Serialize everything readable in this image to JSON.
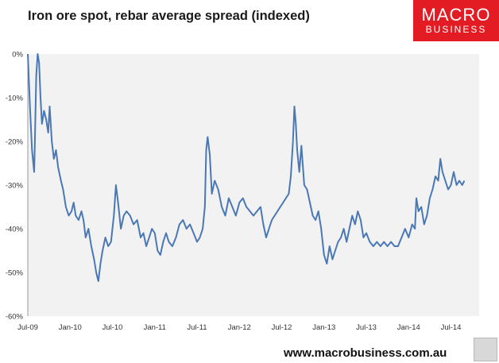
{
  "title": "Iron ore spot, rebar average spread (indexed)",
  "logo": {
    "line1": "MACRO",
    "line2": "BUSINESS"
  },
  "footer": "www.macrobusiness.com.au",
  "colors": {
    "line": "#4a78b5",
    "plot_bg": "#f2f2f2",
    "grid": "#ffffff",
    "brand": "#e31b23"
  },
  "chart_data": {
    "type": "line",
    "title": "Iron ore spot, rebar average spread (indexed)",
    "xlabel": "",
    "ylabel": "",
    "ylim": [
      -60,
      0
    ],
    "xlim": [
      0,
      64
    ],
    "y_ticks": [
      0,
      -10,
      -20,
      -30,
      -40,
      -50,
      -60
    ],
    "y_tick_labels": [
      "0%",
      "-10%",
      "-20%",
      "-30%",
      "-40%",
      "-50%",
      "-60%"
    ],
    "x_ticks": [
      0,
      6,
      12,
      18,
      24,
      30,
      36,
      42,
      48,
      54,
      60
    ],
    "x_tick_labels": [
      "Jul-09",
      "Jan-10",
      "Jul-10",
      "Jan-11",
      "Jul-11",
      "Jan-12",
      "Jul-12",
      "Jan-13",
      "Jul-13",
      "Jan-14",
      "Jul-14"
    ],
    "grid": false,
    "legend": "none",
    "series": [
      {
        "points": [
          [
            0,
            0
          ],
          [
            0.3,
            -12
          ],
          [
            0.6,
            -22
          ],
          [
            0.9,
            -27
          ],
          [
            1.0,
            -20
          ],
          [
            1.2,
            -5
          ],
          [
            1.4,
            0
          ],
          [
            1.6,
            -2
          ],
          [
            1.8,
            -10
          ],
          [
            2.0,
            -16
          ],
          [
            2.3,
            -13
          ],
          [
            2.6,
            -15
          ],
          [
            2.9,
            -18
          ],
          [
            3.1,
            -12
          ],
          [
            3.4,
            -20
          ],
          [
            3.7,
            -24
          ],
          [
            4.0,
            -22
          ],
          [
            4.3,
            -26
          ],
          [
            4.7,
            -29
          ],
          [
            5.0,
            -31
          ],
          [
            5.4,
            -35
          ],
          [
            5.8,
            -37
          ],
          [
            6.2,
            -36
          ],
          [
            6.5,
            -34
          ],
          [
            6.8,
            -37
          ],
          [
            7.2,
            -38
          ],
          [
            7.6,
            -36
          ],
          [
            7.9,
            -38
          ],
          [
            8.2,
            -42
          ],
          [
            8.6,
            -40
          ],
          [
            9.0,
            -44
          ],
          [
            9.4,
            -47
          ],
          [
            9.7,
            -50
          ],
          [
            10.0,
            -52
          ],
          [
            10.3,
            -48
          ],
          [
            10.6,
            -45
          ],
          [
            11.0,
            -42
          ],
          [
            11.4,
            -44
          ],
          [
            11.8,
            -43
          ],
          [
            12.2,
            -37
          ],
          [
            12.5,
            -30
          ],
          [
            12.8,
            -34
          ],
          [
            13.2,
            -40
          ],
          [
            13.6,
            -37
          ],
          [
            14.0,
            -36
          ],
          [
            14.5,
            -37
          ],
          [
            15.0,
            -39
          ],
          [
            15.5,
            -38
          ],
          [
            16.0,
            -42
          ],
          [
            16.4,
            -41
          ],
          [
            16.8,
            -44
          ],
          [
            17.2,
            -42
          ],
          [
            17.6,
            -40
          ],
          [
            18.0,
            -41
          ],
          [
            18.4,
            -45
          ],
          [
            18.8,
            -46
          ],
          [
            19.2,
            -43
          ],
          [
            19.6,
            -41
          ],
          [
            20.0,
            -43
          ],
          [
            20.5,
            -44
          ],
          [
            21.0,
            -42
          ],
          [
            21.5,
            -39
          ],
          [
            22.0,
            -38
          ],
          [
            22.5,
            -40
          ],
          [
            23.0,
            -39
          ],
          [
            23.5,
            -41
          ],
          [
            24.0,
            -43
          ],
          [
            24.4,
            -42
          ],
          [
            24.8,
            -40
          ],
          [
            25.1,
            -35
          ],
          [
            25.3,
            -22
          ],
          [
            25.5,
            -19
          ],
          [
            25.8,
            -23
          ],
          [
            26.1,
            -32
          ],
          [
            26.5,
            -29
          ],
          [
            27.0,
            -31
          ],
          [
            27.5,
            -35
          ],
          [
            28.0,
            -37
          ],
          [
            28.5,
            -33
          ],
          [
            29.0,
            -35
          ],
          [
            29.5,
            -37
          ],
          [
            30.0,
            -34
          ],
          [
            30.5,
            -33
          ],
          [
            31.0,
            -35
          ],
          [
            31.5,
            -36
          ],
          [
            32.0,
            -37
          ],
          [
            32.5,
            -36
          ],
          [
            33.0,
            -35
          ],
          [
            33.4,
            -39
          ],
          [
            33.8,
            -42
          ],
          [
            34.2,
            -40
          ],
          [
            34.6,
            -38
          ],
          [
            35.0,
            -37
          ],
          [
            35.4,
            -36
          ],
          [
            35.8,
            -35
          ],
          [
            36.2,
            -34
          ],
          [
            36.6,
            -33
          ],
          [
            37.0,
            -32
          ],
          [
            37.3,
            -28
          ],
          [
            37.6,
            -20
          ],
          [
            37.8,
            -12
          ],
          [
            38.0,
            -16
          ],
          [
            38.2,
            -22
          ],
          [
            38.5,
            -27
          ],
          [
            38.8,
            -21
          ],
          [
            39.2,
            -30
          ],
          [
            39.6,
            -31
          ],
          [
            40.0,
            -34
          ],
          [
            40.4,
            -37
          ],
          [
            40.8,
            -38
          ],
          [
            41.2,
            -36
          ],
          [
            41.6,
            -40
          ],
          [
            42.0,
            -46
          ],
          [
            42.4,
            -48
          ],
          [
            42.8,
            -44
          ],
          [
            43.2,
            -47
          ],
          [
            43.6,
            -45
          ],
          [
            44.0,
            -43
          ],
          [
            44.4,
            -42
          ],
          [
            44.8,
            -40
          ],
          [
            45.2,
            -43
          ],
          [
            45.6,
            -40
          ],
          [
            46.0,
            -37
          ],
          [
            46.4,
            -39
          ],
          [
            46.8,
            -36
          ],
          [
            47.2,
            -38
          ],
          [
            47.6,
            -42
          ],
          [
            48.0,
            -41
          ],
          [
            48.5,
            -43
          ],
          [
            49.0,
            -44
          ],
          [
            49.5,
            -43
          ],
          [
            50.0,
            -44
          ],
          [
            50.5,
            -43
          ],
          [
            51.0,
            -44
          ],
          [
            51.5,
            -43
          ],
          [
            52.0,
            -44
          ],
          [
            52.5,
            -44
          ],
          [
            53.0,
            -42
          ],
          [
            53.5,
            -40
          ],
          [
            54.0,
            -42
          ],
          [
            54.5,
            -39
          ],
          [
            54.9,
            -40
          ],
          [
            55.1,
            -33
          ],
          [
            55.4,
            -36
          ],
          [
            55.8,
            -35
          ],
          [
            56.2,
            -39
          ],
          [
            56.6,
            -37
          ],
          [
            57.0,
            -33
          ],
          [
            57.4,
            -31
          ],
          [
            57.8,
            -28
          ],
          [
            58.2,
            -29
          ],
          [
            58.5,
            -24
          ],
          [
            58.8,
            -27
          ],
          [
            59.2,
            -29
          ],
          [
            59.6,
            -31
          ],
          [
            60.0,
            -30
          ],
          [
            60.4,
            -27
          ],
          [
            60.8,
            -30
          ],
          [
            61.2,
            -29
          ],
          [
            61.6,
            -30
          ],
          [
            61.9,
            -29
          ]
        ]
      }
    ]
  }
}
